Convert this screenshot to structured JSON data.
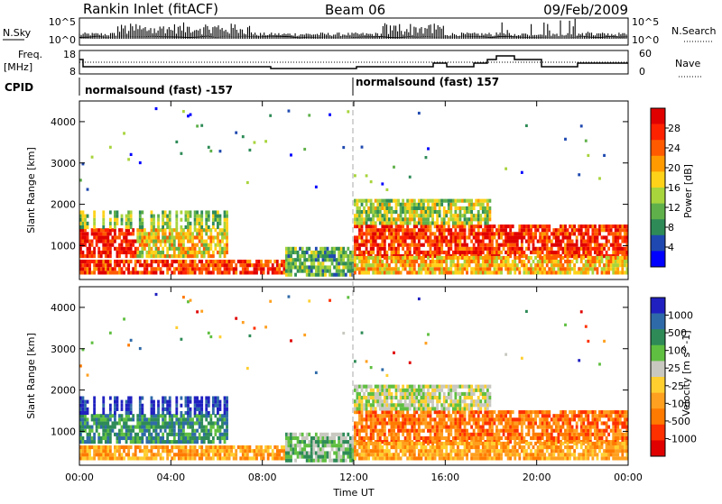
{
  "header": {
    "title": "Rankin Inlet (fitACF)",
    "beam": "Beam 06",
    "date": "09/Feb/2009"
  },
  "panels": {
    "sky": {
      "left_label": "N.Sky",
      "right_label": "N.Search",
      "left_ticks": [
        "10^5",
        "10^0"
      ],
      "right_ticks": [
        "10^5",
        "10^0"
      ]
    },
    "freq": {
      "left_label_1": "Freq.",
      "left_label_2": "[MHz]",
      "right_label": "Nave",
      "left_ticks": [
        "18",
        "8"
      ],
      "right_ticks": [
        "60",
        "0"
      ]
    },
    "cpid": {
      "label": "CPID",
      "mode_1": "normalsound (fast) -157",
      "mode_2": "normalsound (fast) 157"
    }
  },
  "chart_data": [
    {
      "type": "heatmap",
      "name": "power",
      "ylabel": "Slant Range [km]",
      "ylim": [
        180,
        4500
      ],
      "yticks": [
        "1000",
        "2000",
        "3000",
        "4000"
      ],
      "colorbar_label": "Power [dB]",
      "colorbar_ticks": [
        "4",
        "8",
        "12",
        "16",
        "20",
        "24",
        "28"
      ],
      "colors": [
        "#0000ff",
        "#1f49b0",
        "#2e8b57",
        "#5fb04a",
        "#a8d43c",
        "#ffd21a",
        "#ff9a00",
        "#ff5a00",
        "#ff2200",
        "#e00000"
      ]
    },
    {
      "type": "heatmap",
      "name": "velocity",
      "ylabel": "Slant Range [km]",
      "xlabel": "Time UT",
      "ylim": [
        180,
        4500
      ],
      "yticks": [
        "1000",
        "2000",
        "3000",
        "4000"
      ],
      "xticks": [
        "00:00",
        "04:00",
        "08:00",
        "12:00",
        "16:00",
        "20:00",
        "00:00"
      ],
      "colorbar_label": "Velocity [m s^-1]",
      "colorbar_ticks": [
        "1000",
        "500",
        "100",
        "25",
        "-25",
        "-100",
        "-500",
        "-1000"
      ],
      "colors": [
        "#2020c0",
        "#2f6aa8",
        "#2e8b57",
        "#5fbf40",
        "#c8c8c0",
        "#ffcf30",
        "#ffa020",
        "#ff7a00",
        "#ff3000",
        "#e00000"
      ]
    }
  ]
}
